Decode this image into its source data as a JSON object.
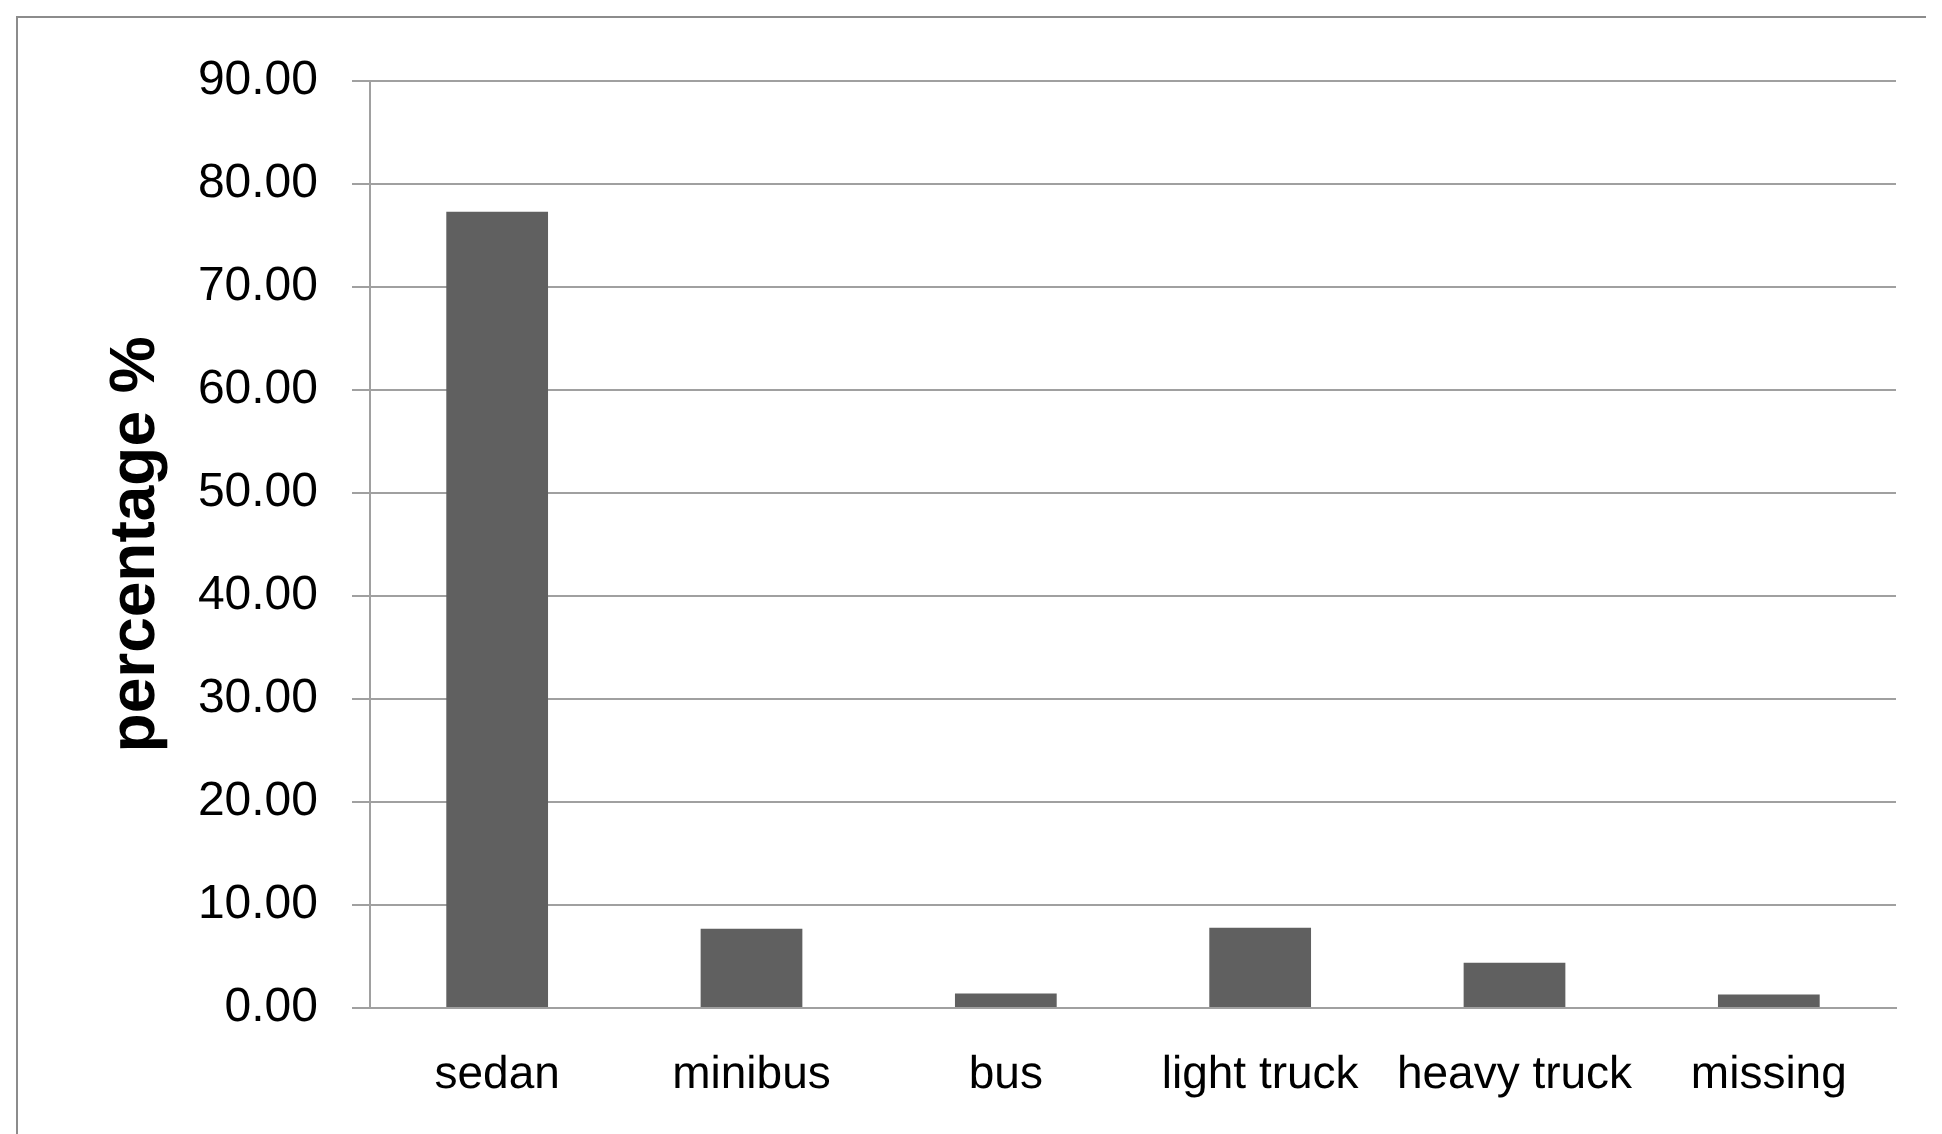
{
  "chart_data": {
    "type": "bar",
    "ylabel": "percentage %",
    "categories": [
      "sedan",
      "minibus",
      "bus",
      "light truck",
      "heavy truck",
      "missing"
    ],
    "values": [
      77.3,
      7.7,
      1.4,
      7.8,
      4.4,
      1.3
    ],
    "color": "#606060",
    "ylim": [
      0,
      90
    ],
    "yticks": [
      {
        "value": 0,
        "label": "0.00"
      },
      {
        "value": 10,
        "label": "10.00"
      },
      {
        "value": 20,
        "label": "20.00"
      },
      {
        "value": 30,
        "label": "30.00"
      },
      {
        "value": 40,
        "label": "40.00"
      },
      {
        "value": 50,
        "label": "50.00"
      },
      {
        "value": 60,
        "label": "60.00"
      },
      {
        "value": 70,
        "label": "70.00"
      },
      {
        "value": 80,
        "label": "80.00"
      },
      {
        "value": 90,
        "label": "90.00"
      }
    ],
    "grid": "y"
  }
}
